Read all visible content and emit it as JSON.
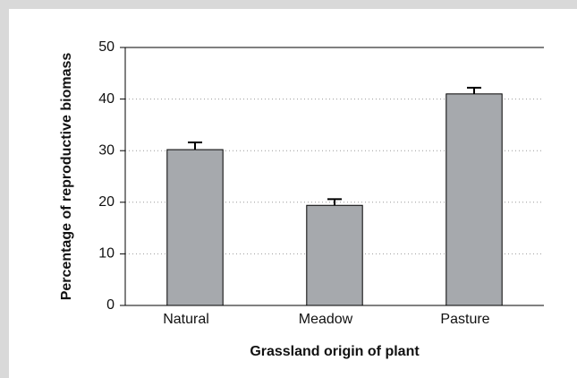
{
  "chart_data": {
    "type": "bar",
    "categories": [
      "Natural",
      "Meadow",
      "Pasture"
    ],
    "values": [
      30.2,
      19.4,
      41.0
    ],
    "errors": [
      1.4,
      1.2,
      1.2
    ],
    "color": "#a6a9ad",
    "xlabel": "Grassland origin of plant",
    "ylabel": "Percentage of reproductive biomass",
    "ylim": [
      0,
      50
    ],
    "yticks": [
      0,
      10,
      20,
      30,
      40,
      50
    ],
    "grid": true
  }
}
